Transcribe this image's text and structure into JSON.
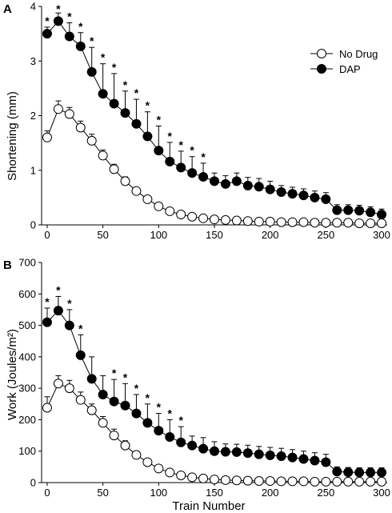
{
  "chart_data": [
    {
      "type": "line",
      "panel_label": "A",
      "ylabel": "Shortening (mm)",
      "xlabel": "",
      "ylim": [
        0,
        4
      ],
      "xlim": [
        -5,
        305
      ],
      "yticks": [
        0,
        1,
        2,
        3,
        4
      ],
      "xticks": [
        0,
        50,
        100,
        150,
        200,
        250,
        300
      ],
      "grid": false,
      "legend_position": "top-right",
      "series": [
        {
          "name": "No Drug",
          "marker": "open-circle",
          "x": [
            0,
            10,
            20,
            30,
            40,
            50,
            60,
            70,
            80,
            90,
            100,
            110,
            120,
            130,
            140,
            150,
            160,
            170,
            180,
            190,
            200,
            210,
            220,
            230,
            240,
            250,
            260,
            270,
            280,
            290,
            300
          ],
          "y": [
            1.6,
            2.12,
            2.03,
            1.78,
            1.54,
            1.27,
            1.02,
            0.8,
            0.62,
            0.47,
            0.34,
            0.25,
            0.19,
            0.15,
            0.12,
            0.1,
            0.09,
            0.08,
            0.07,
            0.06,
            0.06,
            0.05,
            0.05,
            0.05,
            0.04,
            0.04,
            0.04,
            0.04,
            0.03,
            0.03,
            0.03
          ],
          "err": [
            0.12,
            0.15,
            0.12,
            0.12,
            0.12,
            0.1,
            0.09,
            0.08,
            0.06,
            0.05,
            0.04,
            0.03,
            0.02,
            0.02,
            0.02,
            0.01,
            0.01,
            0.01,
            0.01,
            0.01,
            0.01,
            0.01,
            0.01,
            0.01,
            0.01,
            0.01,
            0.01,
            0.01,
            0.01,
            0.01,
            0.01
          ]
        },
        {
          "name": "DAP",
          "marker": "filled-circle",
          "x": [
            0,
            10,
            20,
            30,
            40,
            50,
            60,
            70,
            80,
            90,
            100,
            110,
            120,
            130,
            140,
            150,
            160,
            170,
            180,
            190,
            200,
            210,
            220,
            230,
            240,
            250,
            260,
            270,
            280,
            290,
            300
          ],
          "y": [
            3.5,
            3.73,
            3.45,
            3.27,
            2.8,
            2.4,
            2.22,
            2.05,
            1.85,
            1.62,
            1.36,
            1.16,
            1.05,
            0.95,
            0.88,
            0.8,
            0.75,
            0.8,
            0.72,
            0.7,
            0.65,
            0.6,
            0.57,
            0.54,
            0.5,
            0.47,
            0.27,
            0.27,
            0.26,
            0.23,
            0.19
          ],
          "err": [
            0.12,
            0.15,
            0.25,
            0.25,
            0.45,
            0.55,
            0.55,
            0.4,
            0.45,
            0.45,
            0.45,
            0.35,
            0.3,
            0.3,
            0.25,
            0.15,
            0.15,
            0.15,
            0.15,
            0.15,
            0.15,
            0.12,
            0.12,
            0.12,
            0.12,
            0.12,
            0.1,
            0.1,
            0.1,
            0.1,
            0.1
          ]
        }
      ],
      "significance_x": [
        0,
        10,
        20,
        30,
        40,
        50,
        60,
        70,
        80,
        90,
        100,
        110,
        120,
        130,
        140
      ]
    },
    {
      "type": "line",
      "panel_label": "B",
      "ylabel": "Work (Joules/m²)",
      "xlabel": "Train Number",
      "ylim": [
        0,
        700
      ],
      "xlim": [
        -5,
        305
      ],
      "yticks": [
        0,
        100,
        200,
        300,
        400,
        500,
        600,
        700
      ],
      "xticks": [
        0,
        50,
        100,
        150,
        200,
        250,
        300
      ],
      "grid": false,
      "legend_position": "none",
      "series": [
        {
          "name": "No Drug",
          "marker": "open-circle",
          "x": [
            0,
            10,
            20,
            30,
            40,
            50,
            60,
            70,
            80,
            90,
            100,
            110,
            120,
            130,
            140,
            150,
            160,
            170,
            180,
            190,
            200,
            210,
            220,
            230,
            240,
            250,
            260,
            270,
            280,
            290,
            300
          ],
          "y": [
            238,
            315,
            300,
            263,
            230,
            190,
            150,
            118,
            88,
            65,
            45,
            32,
            23,
            17,
            13,
            10,
            8,
            7,
            6,
            5,
            5,
            4,
            4,
            4,
            3,
            3,
            3,
            3,
            3,
            3,
            3
          ],
          "err": [
            35,
            25,
            25,
            25,
            20,
            20,
            20,
            15,
            12,
            10,
            8,
            6,
            5,
            4,
            3,
            2,
            2,
            2,
            1,
            1,
            1,
            1,
            1,
            1,
            1,
            1,
            1,
            1,
            1,
            1,
            1
          ]
        },
        {
          "name": "DAP",
          "marker": "filled-circle",
          "x": [
            0,
            10,
            20,
            30,
            40,
            50,
            60,
            70,
            80,
            90,
            100,
            110,
            120,
            130,
            140,
            150,
            160,
            170,
            180,
            190,
            200,
            210,
            220,
            230,
            240,
            250,
            260,
            270,
            280,
            290,
            300
          ],
          "y": [
            510,
            547,
            500,
            405,
            330,
            280,
            258,
            245,
            220,
            190,
            165,
            145,
            128,
            118,
            108,
            100,
            98,
            97,
            94,
            90,
            87,
            84,
            80,
            75,
            70,
            65,
            35,
            33,
            32,
            32,
            32
          ],
          "err": [
            45,
            45,
            50,
            65,
            70,
            60,
            70,
            70,
            60,
            60,
            55,
            55,
            50,
            30,
            35,
            30,
            25,
            25,
            25,
            25,
            25,
            25,
            25,
            25,
            25,
            25,
            15,
            15,
            15,
            15,
            15
          ]
        }
      ],
      "significance_x": [
        0,
        10,
        20,
        30,
        60,
        70,
        80,
        90,
        100,
        110,
        120
      ]
    }
  ]
}
